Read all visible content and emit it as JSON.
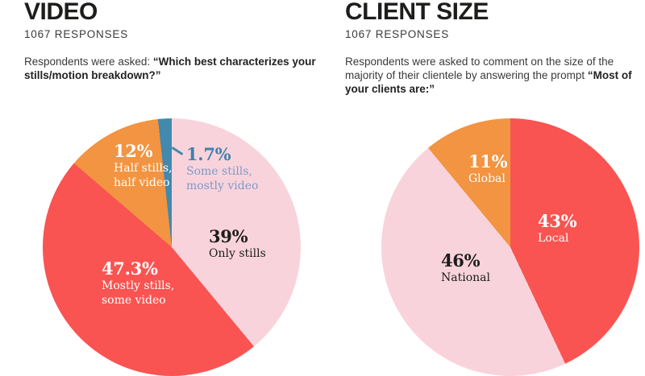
{
  "sections": [
    {
      "title": "VIDEO",
      "responses": "1067 RESPONSES",
      "question_prefix": "Respondents were asked: ",
      "question_bold": "“Which best characterizes your stills/motion breakdown?”"
    },
    {
      "title": "CLIENT SIZE",
      "responses": "1067 RESPONSES",
      "question_prefix": "Respondents were asked to comment on the size of the majority of their clientele by answering the prompt ",
      "question_bold": "“Most of your clients are:”"
    }
  ],
  "chart_data": [
    {
      "type": "pie",
      "title": "VIDEO",
      "subtitle": "1067 RESPONSES",
      "n_responses": 1067,
      "start_angle": "12 o'clock",
      "direction": "clockwise",
      "legend": "labels placed on slices",
      "slices": [
        {
          "label": "Only stills",
          "pct_label": "39%",
          "value": 39,
          "color": "#F9D3DC",
          "label_color": "#1D1D1B",
          "sub_color": "#1D1D1B",
          "label_lines": [
            "Only stills"
          ]
        },
        {
          "label": "Mostly stills, some video",
          "pct_label": "47.3%",
          "value": 47.3,
          "color": "#F95452",
          "label_color": "#FFFFFF",
          "sub_color": "#FFFFFF",
          "label_lines": [
            "Mostly stills,",
            "some video"
          ]
        },
        {
          "label": "Half stills, half video",
          "pct_label": "12%",
          "value": 12,
          "color": "#F29441",
          "label_color": "#FFFFFF",
          "sub_color": "#FFFFFF",
          "label_lines": [
            "Half stills,",
            "half video"
          ]
        },
        {
          "label": "Some stills, mostly video",
          "pct_label": "1.7%",
          "value": 1.7,
          "color": "#4289AD",
          "label_color": "#3E81AC",
          "sub_color": "#7D9BC8",
          "label_lines": [
            "Some stills,",
            "mostly video"
          ]
        }
      ]
    },
    {
      "type": "pie",
      "title": "CLIENT SIZE",
      "subtitle": "1067 RESPONSES",
      "n_responses": 1067,
      "start_angle": "12 o'clock",
      "direction": "clockwise",
      "legend": "labels placed on slices",
      "slices": [
        {
          "label": "Local",
          "pct_label": "43%",
          "value": 43,
          "color": "#F95452",
          "label_color": "#FFFFFF",
          "sub_color": "#FFFFFF",
          "label_lines": [
            "Local"
          ]
        },
        {
          "label": "National",
          "pct_label": "46%",
          "value": 46,
          "color": "#F9D3DC",
          "label_color": "#1D1D1B",
          "sub_color": "#1D1D1B",
          "label_lines": [
            "National"
          ]
        },
        {
          "label": "Global",
          "pct_label": "11%",
          "value": 11,
          "color": "#F29441",
          "label_color": "#FFFFFF",
          "sub_color": "#FFFFFF",
          "label_lines": [
            "Global"
          ]
        }
      ]
    }
  ]
}
